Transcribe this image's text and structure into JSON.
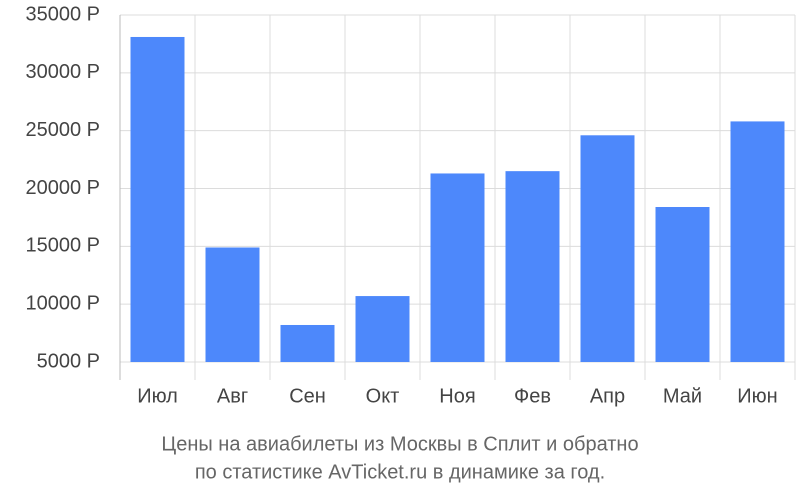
{
  "chart_data": {
    "type": "bar",
    "categories": [
      "Июл",
      "Авг",
      "Сен",
      "Окт",
      "Ноя",
      "Фев",
      "Апр",
      "Май",
      "Июн"
    ],
    "values": [
      33100,
      14900,
      8200,
      10700,
      21300,
      21500,
      24600,
      18400,
      25800
    ],
    "color": "#4d88fb",
    "ylim": [
      5000,
      35000
    ],
    "yticks": [
      {
        "value": 5000,
        "label": "5000 Р"
      },
      {
        "value": 10000,
        "label": "10000 Р"
      },
      {
        "value": 15000,
        "label": "15000 Р"
      },
      {
        "value": 20000,
        "label": "20000 Р"
      },
      {
        "value": 25000,
        "label": "25000 Р"
      },
      {
        "value": 30000,
        "label": "30000 Р"
      },
      {
        "value": 35000,
        "label": "35000 Р"
      }
    ],
    "grid": true,
    "caption": [
      "Цены на авиабилеты из Москвы в Сплит и обратно",
      "по статистике AvTicket.ru в динамике за год."
    ]
  }
}
